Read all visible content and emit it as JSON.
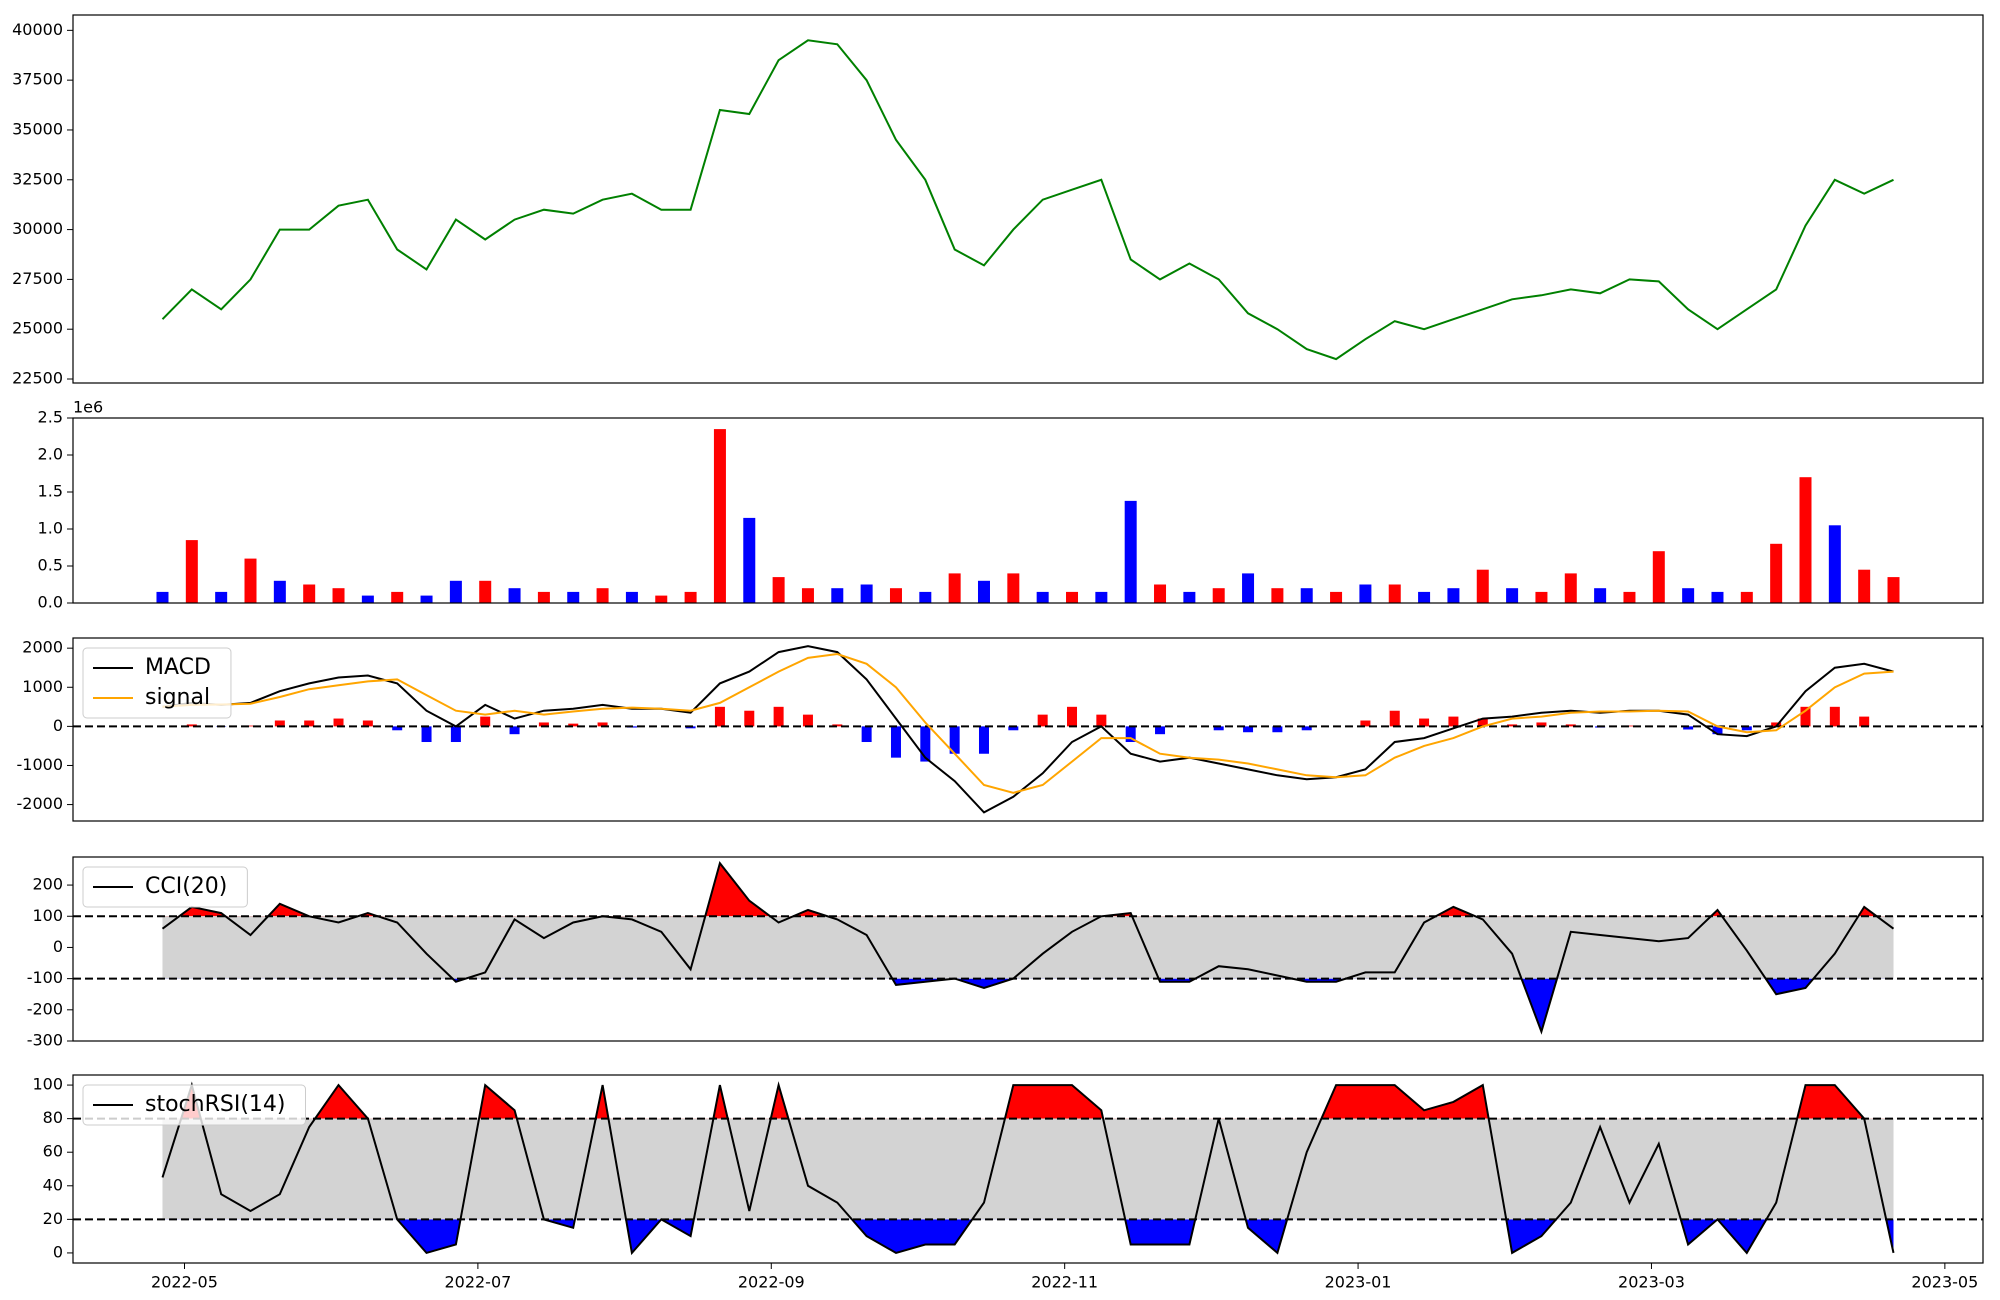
{
  "chart_data": [
    {
      "type": "line",
      "color": "#008000",
      "x": [
        -0.15,
        0.05,
        0.25,
        0.45,
        0.65,
        0.85,
        1.05,
        1.25,
        1.45,
        1.65,
        1.85,
        2.05,
        2.25,
        2.45,
        2.65,
        2.85,
        3.05,
        3.25,
        3.45,
        3.65,
        3.85,
        4.05,
        4.25,
        4.45,
        4.65,
        4.85,
        5.05,
        5.25,
        5.45,
        5.65,
        5.85,
        6.05,
        6.25,
        6.45,
        6.65,
        6.85,
        7.05,
        7.25,
        7.45,
        7.65,
        7.85,
        8.05,
        8.25,
        8.45,
        8.65,
        8.85,
        9.05,
        9.25,
        9.45,
        9.65,
        9.85,
        10.05,
        10.25,
        10.45,
        10.65,
        10.85,
        11.05,
        11.25,
        11.45,
        11.65
      ],
      "values": [
        25500,
        27000,
        26000,
        27500,
        30000,
        30000,
        31200,
        31500,
        29000,
        28000,
        30500,
        29500,
        30500,
        31000,
        30800,
        31500,
        31800,
        31000,
        31000,
        36000,
        35800,
        38500,
        39500,
        39300,
        37500,
        34500,
        32500,
        29000,
        28200,
        30000,
        31500,
        32000,
        32500,
        28500,
        27500,
        28300,
        27500,
        25800,
        25000,
        24000,
        23500,
        24500,
        25400,
        25000,
        25500,
        26000,
        26500,
        26700,
        27000,
        26800,
        27500,
        27400,
        26000,
        25000,
        26000,
        27000,
        30200,
        32500,
        31800,
        32500
      ],
      "xlim": [
        -0.76,
        12.26
      ],
      "ylim": [
        22300,
        40770
      ],
      "yticks": [
        22500,
        25000,
        27500,
        30000,
        32500,
        35000,
        37500,
        40000
      ]
    },
    {
      "type": "bar",
      "x": [
        -0.15,
        0.05,
        0.25,
        0.45,
        0.65,
        0.85,
        1.05,
        1.25,
        1.45,
        1.65,
        1.85,
        2.05,
        2.25,
        2.45,
        2.65,
        2.85,
        3.05,
        3.25,
        3.45,
        3.65,
        3.85,
        4.05,
        4.25,
        4.45,
        4.65,
        4.85,
        5.05,
        5.25,
        5.45,
        5.65,
        5.85,
        6.05,
        6.25,
        6.45,
        6.65,
        6.85,
        7.05,
        7.25,
        7.45,
        7.65,
        7.85,
        8.05,
        8.25,
        8.45,
        8.65,
        8.85,
        9.05,
        9.25,
        9.45,
        9.65,
        9.85,
        10.05,
        10.25,
        10.45,
        10.65,
        10.85,
        11.05,
        11.25,
        11.45,
        11.65
      ],
      "values": [
        150000,
        850000,
        150000,
        600000,
        300000,
        250000,
        200000,
        100000,
        150000,
        100000,
        300000,
        300000,
        200000,
        150000,
        150000,
        200000,
        150000,
        100000,
        150000,
        2350000,
        1150000,
        350000,
        200000,
        200000,
        250000,
        200000,
        150000,
        400000,
        300000,
        400000,
        150000,
        150000,
        150000,
        1380000,
        250000,
        150000,
        200000,
        400000,
        200000,
        200000,
        150000,
        250000,
        250000,
        150000,
        200000,
        450000,
        200000,
        150000,
        400000,
        200000,
        150000,
        700000,
        200000,
        150000,
        150000,
        800000,
        1700000,
        1050000,
        450000,
        350000
      ],
      "colors": [
        "#0000ff",
        "#ff0000",
        "#0000ff",
        "#ff0000",
        "#0000ff",
        "#ff0000",
        "#ff0000",
        "#0000ff",
        "#ff0000",
        "#0000ff",
        "#0000ff",
        "#ff0000",
        "#0000ff",
        "#ff0000",
        "#0000ff",
        "#ff0000",
        "#0000ff",
        "#ff0000",
        "#ff0000",
        "#ff0000",
        "#0000ff",
        "#ff0000",
        "#ff0000",
        "#0000ff",
        "#0000ff",
        "#ff0000",
        "#0000ff",
        "#ff0000",
        "#0000ff",
        "#ff0000",
        "#0000ff",
        "#ff0000",
        "#0000ff",
        "#0000ff",
        "#ff0000",
        "#0000ff",
        "#ff0000",
        "#0000ff",
        "#ff0000",
        "#0000ff",
        "#ff0000",
        "#0000ff",
        "#ff0000",
        "#0000ff",
        "#0000ff",
        "#ff0000",
        "#0000ff",
        "#ff0000",
        "#ff0000",
        "#0000ff",
        "#ff0000",
        "#ff0000",
        "#0000ff",
        "#0000ff",
        "#ff0000",
        "#ff0000",
        "#ff0000",
        "#0000ff",
        "#ff0000",
        "#ff0000"
      ],
      "xlim": [
        -0.76,
        12.26
      ],
      "ylim": [
        0,
        2500000
      ],
      "yticks": [
        {
          "value": 0,
          "label": "0.0"
        },
        {
          "value": 500000,
          "label": "0.5"
        },
        {
          "value": 1000000,
          "label": "1.0"
        },
        {
          "value": 1500000,
          "label": "1.5"
        },
        {
          "value": 2000000,
          "label": "2.0"
        },
        {
          "value": 2500000,
          "label": "2.5"
        }
      ],
      "offset_label": "1e6"
    },
    {
      "type": "line",
      "legend": "upper left",
      "x": [
        -0.15,
        0.05,
        0.25,
        0.45,
        0.65,
        0.85,
        1.05,
        1.25,
        1.45,
        1.65,
        1.85,
        2.05,
        2.25,
        2.45,
        2.65,
        2.85,
        3.05,
        3.25,
        3.45,
        3.65,
        3.85,
        4.05,
        4.25,
        4.45,
        4.65,
        4.85,
        5.05,
        5.25,
        5.45,
        5.65,
        5.85,
        6.05,
        6.25,
        6.45,
        6.65,
        6.85,
        7.05,
        7.25,
        7.45,
        7.65,
        7.85,
        8.05,
        8.25,
        8.45,
        8.65,
        8.85,
        9.05,
        9.25,
        9.45,
        9.65,
        9.85,
        10.05,
        10.25,
        10.45,
        10.65,
        10.85,
        11.05,
        11.25,
        11.45,
        11.65
      ],
      "series": [
        {
          "name": "MACD",
          "color": "#000000",
          "values": [
            500,
            600,
            550,
            600,
            900,
            1100,
            1250,
            1300,
            1100,
            400,
            0,
            550,
            200,
            400,
            450,
            550,
            450,
            450,
            350,
            1100,
            1400,
            1900,
            2050,
            1900,
            1200,
            200,
            -800,
            -1400,
            -2200,
            -1800,
            -1200,
            -400,
            0,
            -700,
            -900,
            -800,
            -950,
            -1100,
            -1250,
            -1350,
            -1300,
            -1100,
            -400,
            -300,
            -50,
            200,
            250,
            350,
            400,
            350,
            400,
            400,
            300,
            -200,
            -250,
            0,
            900,
            1500,
            1600,
            1400
          ]
        },
        {
          "name": "signal",
          "color": "#ffa500",
          "values": [
            500,
            550,
            560,
            580,
            750,
            950,
            1050,
            1150,
            1200,
            800,
            400,
            300,
            400,
            300,
            380,
            450,
            480,
            450,
            400,
            600,
            1000,
            1400,
            1750,
            1850,
            1600,
            1000,
            100,
            -700,
            -1500,
            -1700,
            -1500,
            -900,
            -300,
            -300,
            -700,
            -800,
            -850,
            -950,
            -1100,
            -1250,
            -1300,
            -1250,
            -800,
            -500,
            -300,
            0,
            200,
            250,
            350,
            380,
            380,
            400,
            380,
            0,
            -150,
            -100,
            400,
            1000,
            1350,
            1400
          ]
        }
      ],
      "histogram": {
        "positive_color": "#ff0000",
        "negative_color": "#0000ff",
        "values": [
          0,
          50,
          -10,
          20,
          150,
          150,
          200,
          150,
          -100,
          -400,
          -400,
          250,
          -200,
          100,
          70,
          100,
          -30,
          0,
          -50,
          500,
          400,
          500,
          300,
          50,
          -400,
          -800,
          -900,
          -700,
          -700,
          -100,
          300,
          500,
          300,
          -400,
          -200,
          0,
          -100,
          -150,
          -150,
          -100,
          0,
          150,
          400,
          200,
          250,
          200,
          50,
          100,
          50,
          -30,
          20,
          0,
          -80,
          -200,
          -100,
          100,
          500,
          500,
          250,
          0
        ]
      },
      "hlines": [
        0
      ],
      "xlim": [
        -0.76,
        12.26
      ],
      "ylim": [
        -2420,
        2260
      ],
      "yticks": [
        -2000,
        -1000,
        0,
        1000,
        2000
      ]
    },
    {
      "type": "line",
      "legend": "upper left",
      "x": [
        -0.15,
        0.05,
        0.25,
        0.45,
        0.65,
        0.85,
        1.05,
        1.25,
        1.45,
        1.65,
        1.85,
        2.05,
        2.25,
        2.45,
        2.65,
        2.85,
        3.05,
        3.25,
        3.45,
        3.65,
        3.85,
        4.05,
        4.25,
        4.45,
        4.65,
        4.85,
        5.05,
        5.25,
        5.45,
        5.65,
        5.85,
        6.05,
        6.25,
        6.45,
        6.65,
        6.85,
        7.05,
        7.25,
        7.45,
        7.65,
        7.85,
        8.05,
        8.25,
        8.45,
        8.65,
        8.85,
        9.05,
        9.25,
        9.45,
        9.65,
        9.85,
        10.05,
        10.25,
        10.45,
        10.65,
        10.85,
        11.05,
        11.25,
        11.45,
        11.65
      ],
      "series": [
        {
          "name": "CCI(20)",
          "color": "#000000",
          "values": [
            60,
            130,
            110,
            40,
            140,
            100,
            80,
            110,
            80,
            -20,
            -110,
            -80,
            90,
            30,
            80,
            100,
            90,
            50,
            -70,
            270,
            150,
            80,
            120,
            90,
            40,
            -120,
            -110,
            -100,
            -130,
            -100,
            -20,
            50,
            100,
            110,
            -110,
            -110,
            -60,
            -70,
            -90,
            -110,
            -110,
            -80,
            -80,
            80,
            130,
            90,
            -20,
            -270,
            50,
            40,
            30,
            20,
            30,
            120,
            -10,
            -150,
            -130,
            -20,
            130,
            60
          ]
        }
      ],
      "hlines": [
        100,
        -100
      ],
      "band_color": "#d3d3d3",
      "upper_fill": "#ff0000",
      "lower_fill": "#0000ff",
      "xlim": [
        -0.76,
        12.26
      ],
      "ylim": [
        -300,
        290
      ],
      "yticks": [
        -300,
        -200,
        -100,
        0,
        100,
        200
      ]
    },
    {
      "type": "line",
      "legend": "upper left",
      "x": [
        -0.15,
        0.05,
        0.25,
        0.45,
        0.65,
        0.85,
        1.05,
        1.25,
        1.45,
        1.65,
        1.85,
        2.05,
        2.25,
        2.45,
        2.65,
        2.85,
        3.05,
        3.25,
        3.45,
        3.65,
        3.85,
        4.05,
        4.25,
        4.45,
        4.65,
        4.85,
        5.05,
        5.25,
        5.45,
        5.65,
        5.85,
        6.05,
        6.25,
        6.45,
        6.65,
        6.85,
        7.05,
        7.25,
        7.45,
        7.65,
        7.85,
        8.05,
        8.25,
        8.45,
        8.65,
        8.85,
        9.05,
        9.25,
        9.45,
        9.65,
        9.85,
        10.05,
        10.25,
        10.45,
        10.65,
        10.85,
        11.05,
        11.25,
        11.45,
        11.65
      ],
      "series": [
        {
          "name": "stochRSI(14)",
          "color": "#000000",
          "values": [
            45,
            100,
            35,
            25,
            35,
            75,
            100,
            80,
            20,
            0,
            5,
            100,
            85,
            20,
            15,
            100,
            0,
            20,
            10,
            100,
            25,
            100,
            40,
            30,
            10,
            0,
            5,
            5,
            30,
            100,
            100,
            100,
            85,
            5,
            5,
            5,
            80,
            15,
            0,
            60,
            100,
            100,
            100,
            85,
            90,
            100,
            0,
            10,
            30,
            75,
            30,
            65,
            5,
            20,
            0,
            30,
            100,
            100,
            80,
            0
          ]
        }
      ],
      "hlines": [
        80,
        20
      ],
      "band_color": "#d3d3d3",
      "upper_fill": "#ff0000",
      "lower_fill": "#0000ff",
      "xlim": [
        -0.76,
        12.26
      ],
      "ylim": [
        -6,
        106
      ],
      "yticks": [
        0,
        20,
        40,
        60,
        80,
        100
      ],
      "xticks": [
        {
          "value": 0,
          "label": "2022-05"
        },
        {
          "value": 2,
          "label": "2022-07"
        },
        {
          "value": 4,
          "label": "2022-09"
        },
        {
          "value": 6,
          "label": "2022-11"
        },
        {
          "value": 8,
          "label": "2023-01"
        },
        {
          "value": 10,
          "label": "2023-03"
        },
        {
          "value": 12,
          "label": "2023-05"
        }
      ]
    }
  ]
}
